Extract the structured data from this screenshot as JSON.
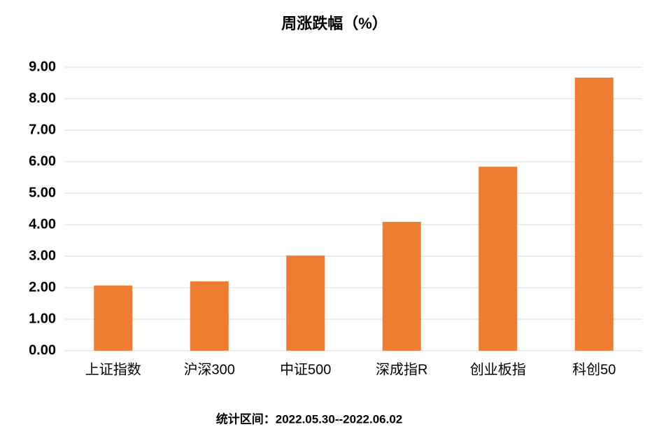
{
  "chart_data": {
    "type": "bar",
    "title": "周涨跌幅（%）",
    "categories": [
      "上证指数",
      "沪深300",
      "中证500",
      "深成指R",
      "创业板指",
      "科创50"
    ],
    "values": [
      2.07,
      2.2,
      3.02,
      4.09,
      5.84,
      8.67
    ],
    "color": "#ed7d31",
    "ylim": [
      0,
      9
    ],
    "yticks": [
      {
        "value": 0,
        "label": "0.00"
      },
      {
        "value": 1,
        "label": "1.00"
      },
      {
        "value": 2,
        "label": "2.00"
      },
      {
        "value": 3,
        "label": "3.00"
      },
      {
        "value": 4,
        "label": "4.00"
      },
      {
        "value": 5,
        "label": "5.00"
      },
      {
        "value": 6,
        "label": "6.00"
      },
      {
        "value": 7,
        "label": "7.00"
      },
      {
        "value": 8,
        "label": "8.00"
      },
      {
        "value": 9,
        "label": "9.00"
      }
    ],
    "grid": true,
    "footnote": "统计区间：2022.05.30--2022.06.02"
  }
}
